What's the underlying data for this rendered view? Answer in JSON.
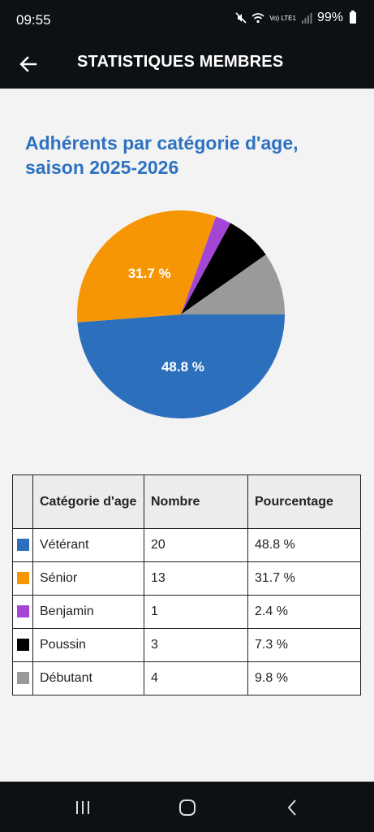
{
  "status": {
    "time": "09:55",
    "battery": "99%",
    "network_label": "Vo) LTE1"
  },
  "appbar": {
    "title": "STATISTIQUES MEMBRES"
  },
  "chart": {
    "title_line1": "Adhérents par catégorie d'age,",
    "title_line2": "saison 2025-2026"
  },
  "chart_data": {
    "type": "pie",
    "title": "Adhérents par catégorie d'age, saison 2025-2026",
    "slices": [
      {
        "label": "Vétérant",
        "value": 20,
        "percent": 48.8,
        "percent_label": "48.8 %",
        "color": "#2c6fbc",
        "show_label": true
      },
      {
        "label": "Sénior",
        "value": 13,
        "percent": 31.7,
        "percent_label": "31.7 %",
        "color": "#f79604",
        "show_label": true
      },
      {
        "label": "Benjamin",
        "value": 1,
        "percent": 2.4,
        "percent_label": "2.4 %",
        "color": "#a445d6",
        "show_label": false
      },
      {
        "label": "Poussin",
        "value": 3,
        "percent": 7.3,
        "percent_label": "7.3 %",
        "color": "#000000",
        "show_label": false
      },
      {
        "label": "Débutant",
        "value": 4,
        "percent": 9.8,
        "percent_label": "9.8 %",
        "color": "#9a9a9a",
        "show_label": false
      }
    ],
    "start_angle_deg": 0,
    "direction": "clockwise"
  },
  "table": {
    "headers": {
      "category": "Catégorie d'age",
      "count": "Nombre",
      "percent": "Pourcentage"
    },
    "rows": [
      {
        "category": "Vétérant",
        "count": "20",
        "percent": "48.8 %",
        "color": "#2c6fbc"
      },
      {
        "category": "Sénior",
        "count": "13",
        "percent": "31.7 %",
        "color": "#f79604"
      },
      {
        "category": "Benjamin",
        "count": "1",
        "percent": "2.4 %",
        "color": "#a445d6"
      },
      {
        "category": "Poussin",
        "count": "3",
        "percent": "7.3 %",
        "color": "#000000"
      },
      {
        "category": "Débutant",
        "count": "4",
        "percent": "9.8 %",
        "color": "#9a9a9a"
      }
    ]
  },
  "colors": {
    "title": "#2d72c1",
    "bar": "#0d1114",
    "background": "#f3f3f3"
  },
  "icons": {
    "back": "arrow-left-icon",
    "recents": "recents-icon",
    "home": "home-icon",
    "nav_back": "chevron-left-icon"
  }
}
